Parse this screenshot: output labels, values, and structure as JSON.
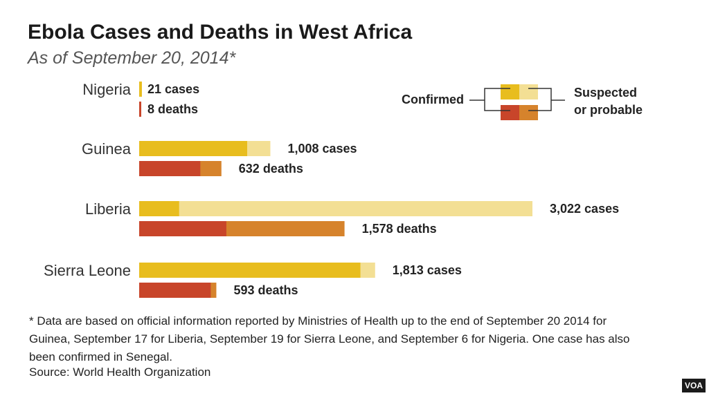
{
  "header": {
    "title": "Ebola Cases and Deaths in West Africa",
    "subtitle": "As of September 20, 2014*"
  },
  "legend": {
    "confirmed_label": "Confirmed",
    "suspected_label_line1": "Suspected",
    "suspected_label_line2": "or probable"
  },
  "colors": {
    "cases_confirmed": "#e8bd1e",
    "cases_suspected": "#f3df94",
    "deaths_confirmed": "#c8452a",
    "deaths_suspected": "#d6832c"
  },
  "chart_data": {
    "type": "bar",
    "orientation": "horizontal",
    "stacked": true,
    "categories": [
      "Nigeria",
      "Guinea",
      "Liberia",
      "Sierra Leone"
    ],
    "series": [
      {
        "name": "Cases",
        "total": [
          21,
          1008,
          3022,
          1813
        ],
        "confirmed": [
          21,
          830,
          307,
          1700
        ],
        "labels": [
          "21 cases",
          "1,008 cases",
          "3,022 cases",
          "1,813 cases"
        ]
      },
      {
        "name": "Deaths",
        "total": [
          8,
          632,
          1578,
          593
        ],
        "confirmed": [
          8,
          470,
          670,
          550
        ],
        "labels": [
          "8 deaths",
          "632 deaths",
          "1,578 deaths",
          "593 deaths"
        ]
      }
    ],
    "xlim": [
      0,
      3022
    ]
  },
  "footnote": "* Data are based on official information reported by Ministries of Health up to the end of September 20 2014 for Guinea, September 17 for Liberia, September 19 for Sierra Leone, and September 6 for Nigeria. One case has also been confirmed in Senegal.",
  "source": "Source: World Health Organization",
  "brand": "VOA"
}
